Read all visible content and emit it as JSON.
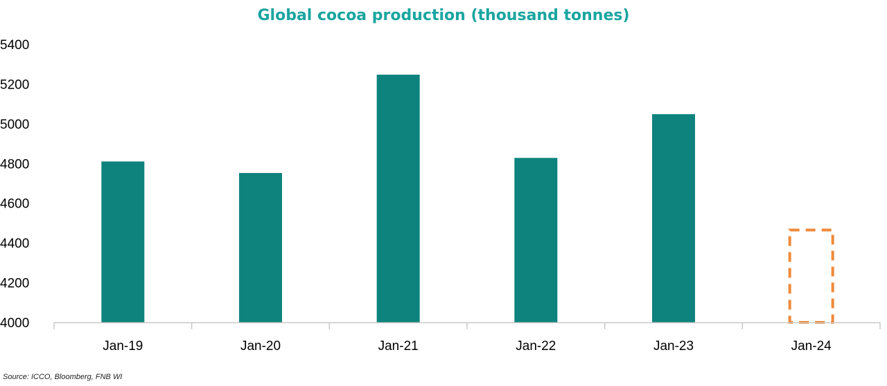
{
  "chart_data": {
    "type": "bar",
    "title": "Global cocoa production (thousand tonnes)",
    "categories": [
      "Jan-19",
      "Jan-20",
      "Jan-21",
      "Jan-22",
      "Jan-23",
      "Jan-24"
    ],
    "values": [
      4810,
      4752,
      5247,
      4828,
      5048,
      4465
    ],
    "ylim": [
      4000,
      5400
    ],
    "yticks": [
      "4000",
      "4200",
      "4400",
      "4600",
      "4800",
      "5000",
      "5200",
      "5400"
    ],
    "estimated_category": "Jan-24",
    "grid": false,
    "source": "Source: ICCO, Bloomberg, FNB WI",
    "colors": {
      "title": "#1aa5a0",
      "bar": "#0e837e",
      "estimate_outline": "#ef8a3a",
      "axis": "#c8c8c8"
    }
  }
}
